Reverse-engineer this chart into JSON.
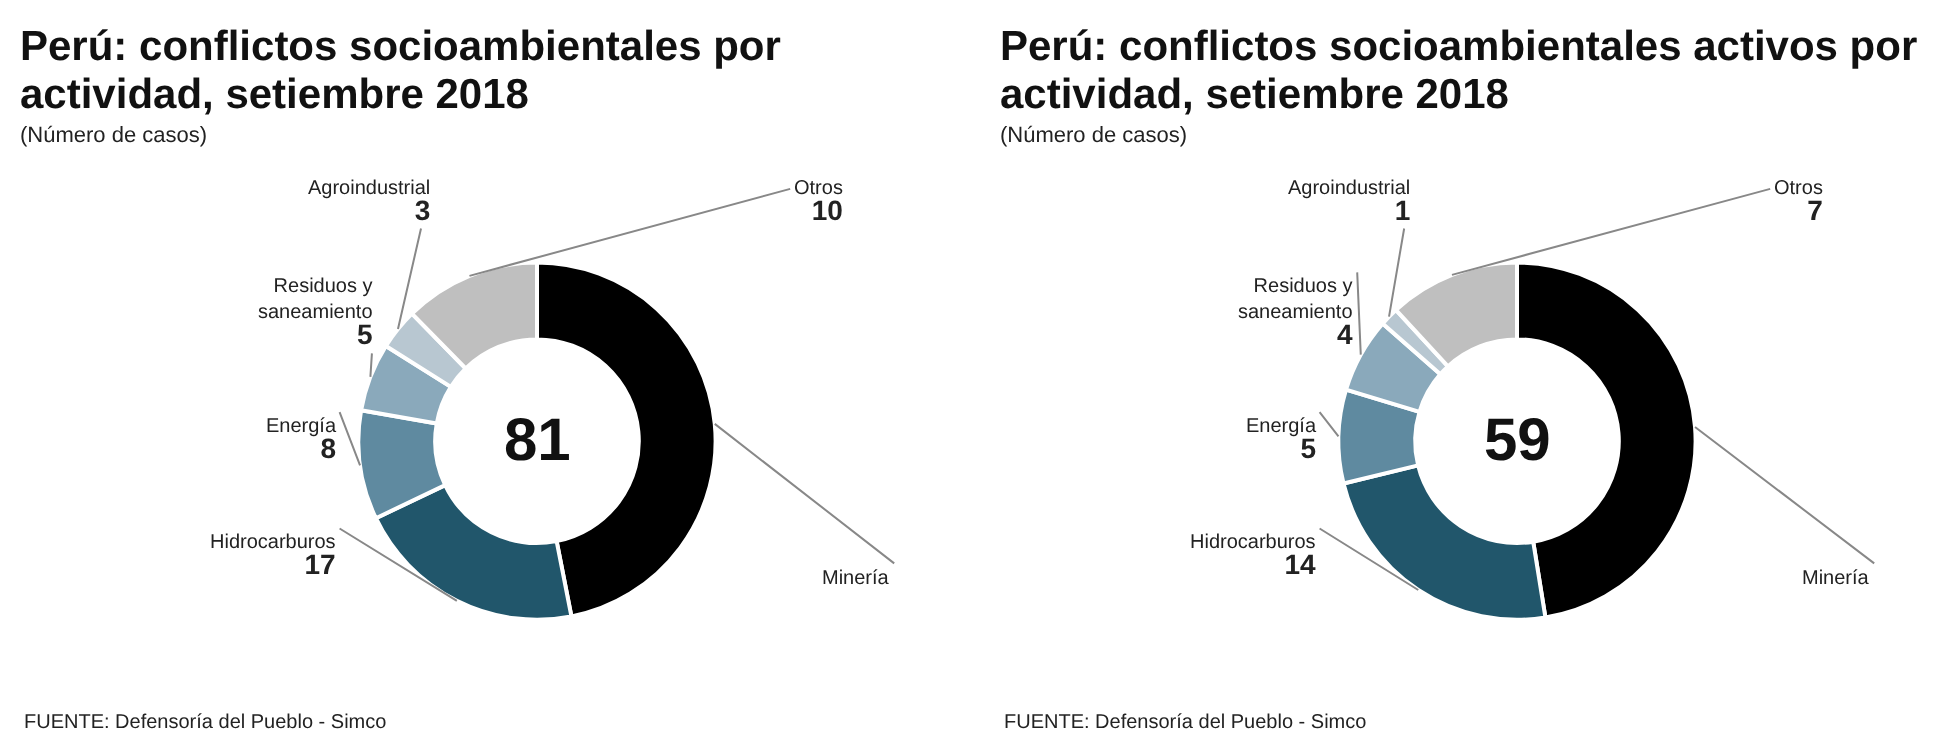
{
  "chart_data": [
    {
      "type": "donut",
      "title": "Perú: conflictos socioambientales por actividad, setiembre 2018",
      "subtitle": "(Número de casos)",
      "categories": [
        "Minería",
        "Hidrocarburos",
        "Energía",
        "Residuos y saneamiento",
        "Agroindustrial",
        "Otros"
      ],
      "values": [
        38,
        17,
        8,
        5,
        3,
        10
      ],
      "value_labels": [
        null,
        "17",
        "8",
        "5",
        "3",
        "10"
      ],
      "colors": [
        "#000000",
        "#21566b",
        "#5f8aa0",
        "#8aa9bb",
        "#b8c7d1",
        "#bfbfbf"
      ],
      "annotations": [
        "81",
        "FUENTE: Defensoría del Pueblo - Simco"
      ],
      "legend": false
    },
    {
      "type": "donut",
      "title": "Perú: conflictos socioambientales activos por actividad, setiembre 2018",
      "subtitle": "(Número de casos)",
      "categories": [
        "Minería",
        "Hidrocarburos",
        "Energía",
        "Residuos y saneamiento",
        "Agroindustrial",
        "Otros"
      ],
      "values": [
        28,
        14,
        5,
        4,
        1,
        7
      ],
      "value_labels": [
        null,
        "14",
        "5",
        "4",
        "1",
        "7"
      ],
      "colors": [
        "#000000",
        "#21566b",
        "#5f8aa0",
        "#8aa9bb",
        "#b8c7d1",
        "#bfbfbf"
      ],
      "annotations": [
        "59",
        "FUENTE: Defensoría del Pueblo - Simco"
      ],
      "legend": false
    }
  ]
}
